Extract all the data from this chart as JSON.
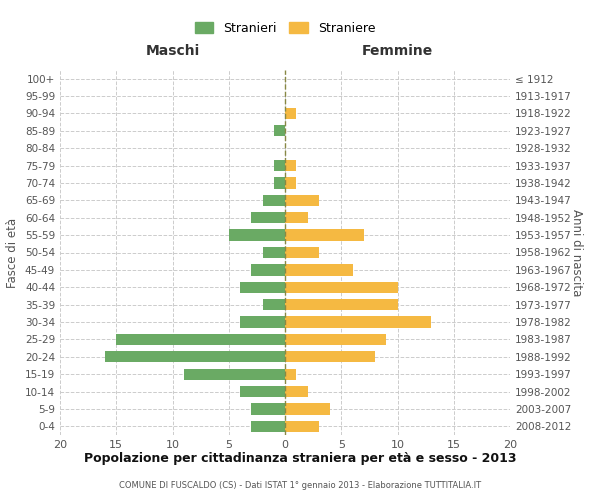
{
  "age_groups": [
    "0-4",
    "5-9",
    "10-14",
    "15-19",
    "20-24",
    "25-29",
    "30-34",
    "35-39",
    "40-44",
    "45-49",
    "50-54",
    "55-59",
    "60-64",
    "65-69",
    "70-74",
    "75-79",
    "80-84",
    "85-89",
    "90-94",
    "95-99",
    "100+"
  ],
  "birth_years": [
    "2008-2012",
    "2003-2007",
    "1998-2002",
    "1993-1997",
    "1988-1992",
    "1983-1987",
    "1978-1982",
    "1973-1977",
    "1968-1972",
    "1963-1967",
    "1958-1962",
    "1953-1957",
    "1948-1952",
    "1943-1947",
    "1938-1942",
    "1933-1937",
    "1928-1932",
    "1923-1927",
    "1918-1922",
    "1913-1917",
    "≤ 1912"
  ],
  "males": [
    3,
    3,
    4,
    9,
    16,
    15,
    4,
    2,
    4,
    3,
    2,
    5,
    3,
    2,
    1,
    1,
    0,
    1,
    0,
    0,
    0
  ],
  "females": [
    3,
    4,
    2,
    1,
    8,
    9,
    13,
    10,
    10,
    6,
    3,
    7,
    2,
    3,
    1,
    1,
    0,
    0,
    1,
    0,
    0
  ],
  "male_color": "#6aaa64",
  "female_color": "#f5b942",
  "background_color": "#ffffff",
  "grid_color": "#cccccc",
  "dashed_line_color": "#888844",
  "title": "Popolazione per cittadinanza straniera per età e sesso - 2013",
  "subtitle": "COMUNE DI FUSCALDO (CS) - Dati ISTAT 1° gennaio 2013 - Elaborazione TUTTITALIA.IT",
  "xlabel_left": "Maschi",
  "xlabel_right": "Femmine",
  "ylabel_left": "Fasce di età",
  "ylabel_right": "Anni di nascita",
  "legend_male": "Stranieri",
  "legend_female": "Straniere",
  "xlim": 20
}
